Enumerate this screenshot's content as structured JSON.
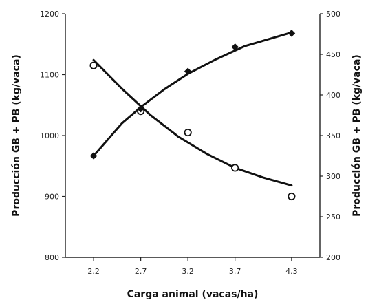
{
  "chart_data": {
    "type": "scatter",
    "title": "",
    "xlabel": "Carga animal (vacas/ha)",
    "ylabel": "Producción GB + PB (kg/vaca)",
    "y2label": "Producción GB + PB (kg/vaca)",
    "x_ticks": [
      "2.2",
      "2.7",
      "3.2",
      "3.7",
      "4.3"
    ],
    "y_ticks": [
      "800",
      "900",
      "1000",
      "1100",
      "1200"
    ],
    "y2_ticks": [
      "200",
      "250",
      "300",
      "350",
      "400",
      "450",
      "500"
    ],
    "xlim": [
      1.9,
      4.6
    ],
    "ylim": [
      800,
      1200
    ],
    "y2lim": [
      200,
      500
    ],
    "grid": false,
    "legend": "none",
    "series": [
      {
        "axis": "left",
        "marker": "circle-open",
        "color": "#111111",
        "points": [
          [
            2.2,
            1115
          ],
          [
            2.7,
            1040
          ],
          [
            3.2,
            1005
          ],
          [
            3.7,
            947
          ],
          [
            4.3,
            900
          ]
        ],
        "trend": [
          [
            2.2,
            1124
          ],
          [
            2.5,
            1077
          ],
          [
            2.8,
            1034
          ],
          [
            3.1,
            998
          ],
          [
            3.4,
            970
          ],
          [
            3.7,
            947
          ],
          [
            4.0,
            931
          ],
          [
            4.3,
            918
          ]
        ]
      },
      {
        "axis": "right",
        "marker": "diamond-filled",
        "color": "#111111",
        "points": [
          [
            2.2,
            325
          ],
          [
            2.7,
            383
          ],
          [
            3.2,
            429
          ],
          [
            3.7,
            459
          ],
          [
            4.3,
            476
          ]
        ],
        "trend": [
          [
            2.2,
            325
          ],
          [
            2.35,
            345
          ],
          [
            2.5,
            365
          ],
          [
            2.7,
            385
          ],
          [
            2.95,
            407
          ],
          [
            3.2,
            426
          ],
          [
            3.5,
            444
          ],
          [
            3.8,
            460
          ],
          [
            4.3,
            477
          ]
        ]
      }
    ]
  }
}
